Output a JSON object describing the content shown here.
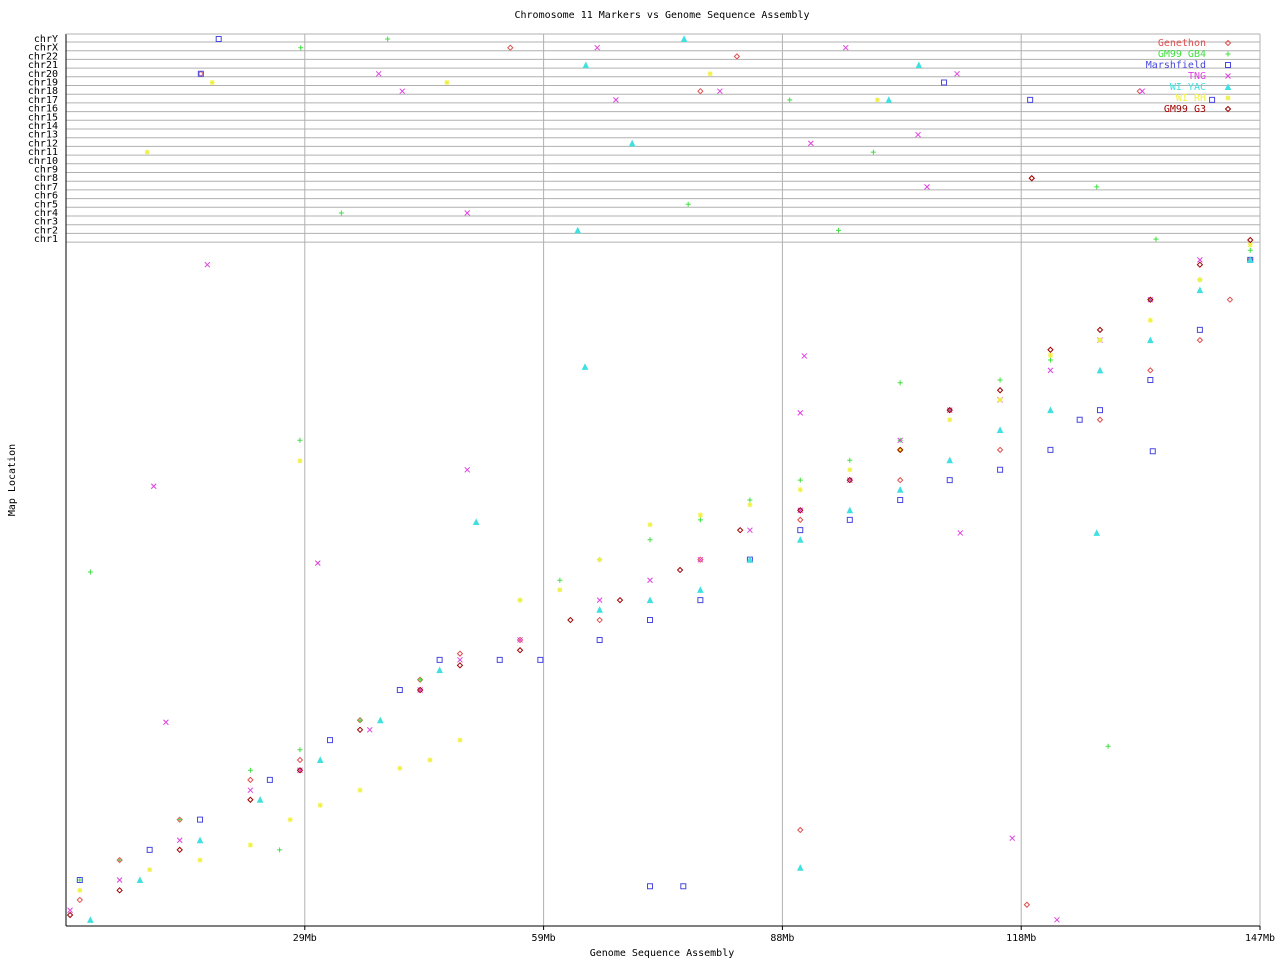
{
  "chart_data": {
    "type": "scatter",
    "title": "Chromosome 11 Markers vs Genome Sequence Assembly",
    "x_label": "Genome Sequence Assembly",
    "y_label": "Map Location",
    "xlim": [
      0,
      147
    ],
    "xticks": [
      {
        "value": 29.4,
        "label": "29Mb"
      },
      {
        "value": 58.8,
        "label": "59Mb"
      },
      {
        "value": 88.2,
        "label": "88Mb"
      },
      {
        "value": 117.6,
        "label": "118Mb"
      },
      {
        "value": 147,
        "label": "147Mb"
      }
    ],
    "ylim": [
      0,
      100
    ],
    "grid": true,
    "legend": "upper right",
    "chromosomes": [
      "chrY",
      "chrX",
      "chr22",
      "chr21",
      "chr20",
      "chr19",
      "chr18",
      "chr17",
      "chr16",
      "chr15",
      "chr14",
      "chr13",
      "chr12",
      "chr11",
      "chr10",
      "chr9",
      "chr8",
      "chr7",
      "chr6",
      "chr5",
      "chr4",
      "chr3",
      "chr2",
      "chr1"
    ],
    "series": [
      {
        "name": "Genethon",
        "color": "#e05050",
        "marker": "diamond",
        "x": [
          1.7,
          6.6,
          14.0,
          22.7,
          28.8,
          36.2,
          43.6,
          48.5,
          55.9,
          65.7,
          78.1,
          90.4,
          102.7,
          115.0,
          127.3,
          133.5,
          139.6,
          143.3,
          145.8,
          90.4,
          118.3
        ],
        "y": [
          3.8,
          9.6,
          15.5,
          21.3,
          24.2,
          30.0,
          35.9,
          39.7,
          41.7,
          44.6,
          53.4,
          59.2,
          65.0,
          69.4,
          73.8,
          81.0,
          85.4,
          91.3,
          97.1,
          14.0,
          3.1
        ],
        "other_x": [
          54.7,
          82.6,
          16.6,
          78.1,
          118.9,
          132.2
        ],
        "other_chr": [
          "chrX",
          "chr22",
          "chr20",
          "chr18",
          "chr8",
          "chr18"
        ]
      },
      {
        "name": "GM99 GB4",
        "color": "#40e040",
        "marker": "plus",
        "x": [
          1.7,
          6.6,
          14.0,
          22.7,
          28.8,
          36.2,
          43.6,
          55.9,
          60.8,
          65.7,
          71.9,
          78.1,
          84.2,
          90.4,
          96.5,
          102.7,
          108.8,
          115.0,
          121.2,
          127.3,
          133.5,
          139.6,
          145.8,
          3.0,
          28.8,
          26.3,
          128.3,
          102.7
        ],
        "y": [
          6.7,
          9.6,
          15.5,
          22.7,
          25.7,
          30.0,
          35.9,
          47.5,
          50.4,
          53.4,
          56.3,
          59.2,
          62.1,
          65.0,
          67.9,
          70.8,
          75.2,
          79.6,
          82.5,
          85.4,
          91.3,
          94.2,
          98.5,
          51.6,
          70.8,
          11.1,
          26.2,
          79.2
        ],
        "other_x": [
          28.9,
          39.6,
          89.1,
          99.4,
          33.9,
          76.6,
          95.1,
          126.9,
          134.2
        ],
        "other_chr": [
          "chrX",
          "chrY",
          "chr17",
          "chr11",
          "chr4",
          "chr5",
          "chr2",
          "chr7",
          "chr1"
        ]
      },
      {
        "name": "Marshfield",
        "color": "#4848e0",
        "marker": "square",
        "x": [
          1.7,
          10.3,
          16.5,
          25.1,
          32.5,
          41.1,
          46.0,
          53.4,
          58.4,
          65.7,
          71.9,
          78.1,
          84.2,
          90.4,
          96.5,
          102.7,
          108.8,
          115.0,
          121.2,
          124.8,
          127.3,
          133.5,
          139.6,
          145.8,
          71.9,
          76.0,
          133.8
        ],
        "y": [
          6.7,
          11.1,
          15.5,
          21.3,
          27.1,
          34.4,
          38.8,
          38.8,
          38.8,
          41.7,
          44.6,
          47.5,
          53.4,
          57.7,
          59.2,
          62.1,
          65.0,
          66.5,
          69.4,
          73.8,
          75.2,
          79.6,
          86.9,
          97.1,
          5.8,
          5.8,
          69.2
        ],
        "other_x": [
          18.8,
          16.6,
          108.1,
          118.7,
          141.1
        ],
        "other_chr": [
          "chrY",
          "chr20",
          "chr19",
          "chr17",
          "chr17"
        ]
      },
      {
        "name": "TNG",
        "color": "#e040e0",
        "marker": "cross",
        "x": [
          0.5,
          6.6,
          14.0,
          22.7,
          28.8,
          37.4,
          43.6,
          48.5,
          55.9,
          65.7,
          71.9,
          78.1,
          84.2,
          90.4,
          96.5,
          102.7,
          108.8,
          115.0,
          121.2,
          127.3,
          133.5,
          139.6,
          17.4,
          10.8,
          12.3,
          31.0,
          49.4,
          90.9,
          90.4,
          110.1,
          116.5,
          122.0
        ],
        "y": [
          2.3,
          6.7,
          12.5,
          19.8,
          22.7,
          28.6,
          34.4,
          38.8,
          41.7,
          47.5,
          50.4,
          53.4,
          57.7,
          60.6,
          65.0,
          70.8,
          75.2,
          76.7,
          81.0,
          85.4,
          91.3,
          97.1,
          96.4,
          64.1,
          29.7,
          52.9,
          66.5,
          83.1,
          74.8,
          57.3,
          12.8,
          0.9
        ],
        "other_x": [
          65.4,
          96.0,
          38.5,
          109.7,
          41.4,
          67.7,
          80.5,
          91.7,
          104.9,
          106.0,
          49.4,
          132.5
        ],
        "other_chr": [
          "chrX",
          "chrX",
          "chr20",
          "chr20",
          "chr18",
          "chr17",
          "chr18",
          "chr12",
          "chr13",
          "chr7",
          "chr4",
          "chr18"
        ]
      },
      {
        "name": "WI YAC",
        "color": "#40e0e0",
        "marker": "triangle",
        "x": [
          3.0,
          9.1,
          16.5,
          23.9,
          31.3,
          38.7,
          46.0,
          65.7,
          71.9,
          78.1,
          84.2,
          90.4,
          96.5,
          102.7,
          108.8,
          115.0,
          121.2,
          127.3,
          133.5,
          139.6,
          145.8,
          50.5,
          63.9,
          90.4,
          126.9
        ],
        "y": [
          0.9,
          6.7,
          12.5,
          18.4,
          24.2,
          30.0,
          37.3,
          46.1,
          47.5,
          49.0,
          53.4,
          56.3,
          60.6,
          63.6,
          67.9,
          72.3,
          75.2,
          81.0,
          85.4,
          92.7,
          97.1,
          58.9,
          81.5,
          8.5,
          57.3
        ],
        "other_x": [
          76.1,
          64.0,
          105.0,
          69.7,
          101.3,
          63.0
        ],
        "other_chr": [
          "chrY",
          "chr21",
          "chr21",
          "chr12",
          "chr17",
          "chr2"
        ]
      },
      {
        "name": "WI RH",
        "color": "#f0f040",
        "marker": "star",
        "x": [
          1.7,
          10.3,
          16.5,
          22.7,
          27.6,
          31.3,
          36.2,
          41.1,
          44.8,
          48.5,
          55.9,
          60.8,
          65.7,
          71.9,
          78.1,
          84.2,
          90.4,
          96.5,
          102.7,
          108.8,
          115.0,
          121.2,
          127.3,
          133.5,
          139.6,
          145.8,
          28.8
        ],
        "y": [
          5.2,
          8.2,
          9.6,
          11.8,
          15.5,
          17.6,
          19.8,
          23.0,
          24.2,
          27.1,
          47.5,
          49.0,
          53.4,
          58.5,
          59.9,
          61.4,
          63.6,
          66.5,
          69.4,
          73.8,
          76.7,
          83.2,
          85.4,
          88.3,
          94.2,
          99.3,
          67.8
        ],
        "other_x": [
          18.0,
          46.9,
          79.3,
          99.9,
          10.0
        ],
        "other_chr": [
          "chr19",
          "chr19",
          "chr20",
          "chr17",
          "chr11"
        ]
      },
      {
        "name": "GM99 G3",
        "color": "#a00000",
        "marker": "diamond",
        "x": [
          0.5,
          6.6,
          14.0,
          22.7,
          28.8,
          36.2,
          43.6,
          48.5,
          55.9,
          62.1,
          68.2,
          75.6,
          83.0,
          90.4,
          96.5,
          102.7,
          108.8,
          115.0,
          121.2,
          127.3,
          133.5,
          139.6,
          145.8
        ],
        "y": [
          1.6,
          5.2,
          11.1,
          18.4,
          22.7,
          28.6,
          34.4,
          38.0,
          40.2,
          44.6,
          47.5,
          51.9,
          57.7,
          60.6,
          65.0,
          69.4,
          75.2,
          78.1,
          84.0,
          86.9,
          91.3,
          96.4,
          100.0
        ],
        "other_x": [
          118.9
        ],
        "other_chr": [
          "chr8"
        ]
      }
    ]
  }
}
